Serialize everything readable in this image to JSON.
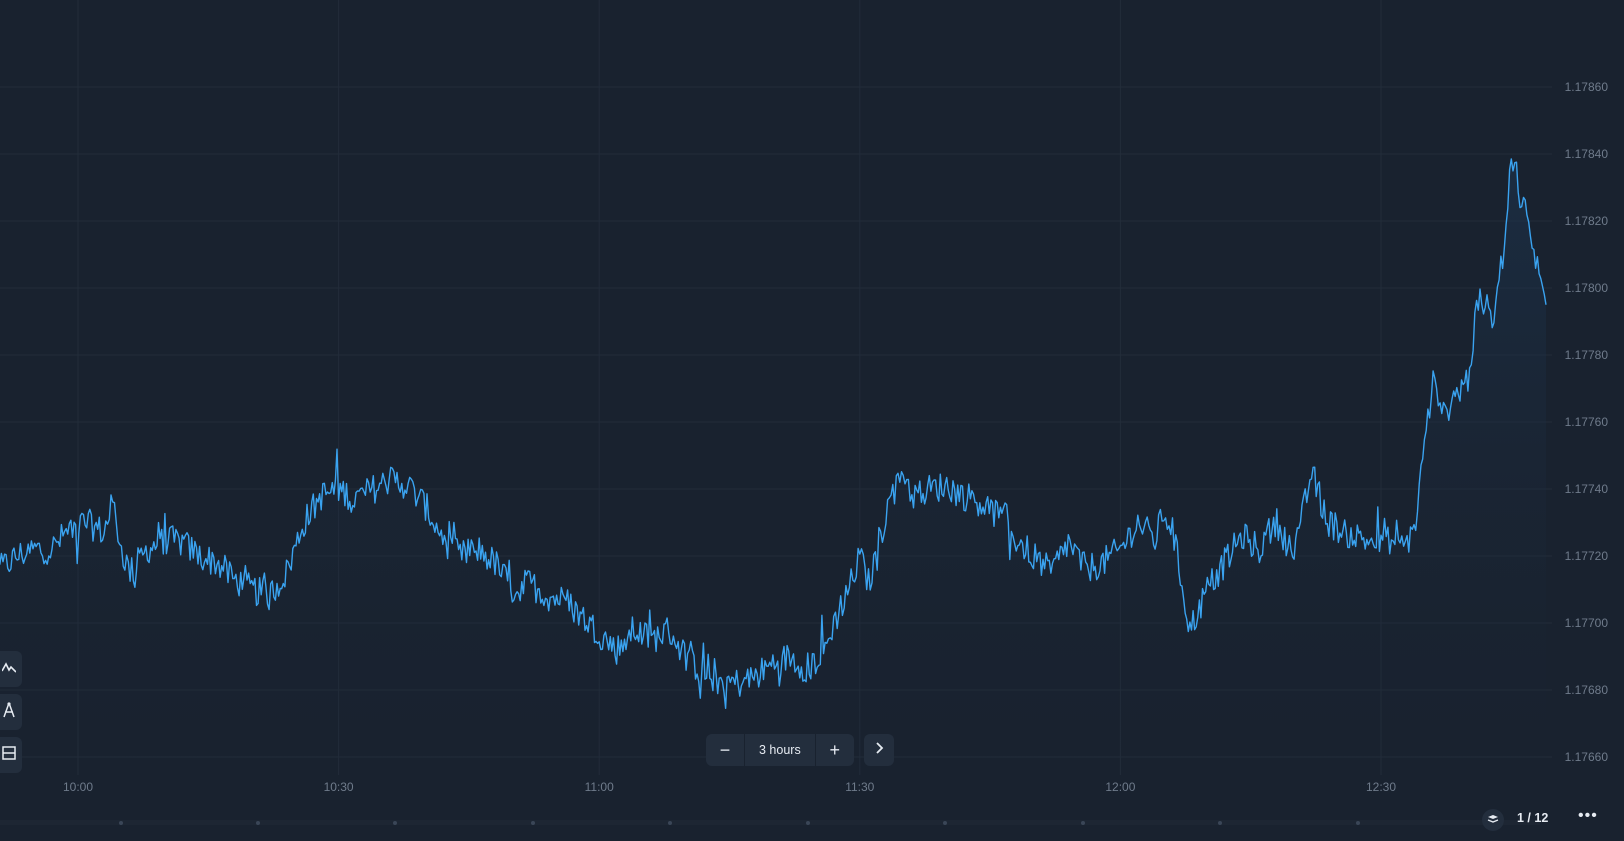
{
  "chart_data": {
    "type": "area",
    "title": "",
    "xlabel": "",
    "ylabel": "",
    "x_ticks": [
      "10:00",
      "10:30",
      "11:00",
      "11:30",
      "12:00",
      "12:30"
    ],
    "y_ticks": [
      "1.17860",
      "1.17840",
      "1.17820",
      "1.17800",
      "1.17780",
      "1.17760",
      "1.17740",
      "1.17720",
      "1.17700",
      "1.17680",
      "1.17660"
    ],
    "ylim": [
      1.1765,
      1.1788
    ],
    "xlim": [
      "09:51",
      "12:49"
    ],
    "grid": true,
    "line_color": "#3aa3f0",
    "series": [
      {
        "x": [
          "09:51",
          "09:53",
          "09:55",
          "09:57",
          "09:59",
          "10:01",
          "10:03",
          "10:04",
          "10:05",
          "10:06",
          "10:08",
          "10:10",
          "10:12",
          "10:14",
          "10:16",
          "10:18",
          "10:20",
          "10:22",
          "10:24",
          "10:26",
          "10:28",
          "10:30",
          "10:32",
          "10:34",
          "10:36",
          "10:38",
          "10:40",
          "10:42",
          "10:44",
          "10:46",
          "10:48",
          "10:50",
          "10:52",
          "10:54",
          "10:56",
          "10:58",
          "11:00",
          "11:02",
          "11:04",
          "11:06",
          "11:08",
          "11:10",
          "11:12",
          "11:14",
          "11:16",
          "11:18",
          "11:20",
          "11:22",
          "11:24",
          "11:26",
          "11:27",
          "11:28",
          "11:29",
          "11:30",
          "11:31",
          "11:32",
          "11:33",
          "11:34",
          "11:35",
          "11:36",
          "11:38",
          "11:40",
          "11:42",
          "11:44",
          "11:46",
          "11:48",
          "11:50",
          "11:52",
          "11:54",
          "11:56",
          "11:58",
          "12:00",
          "12:02",
          "12:04",
          "12:05",
          "12:06",
          "12:08",
          "12:10",
          "12:12",
          "12:14",
          "12:16",
          "12:18",
          "12:20",
          "12:22",
          "12:24",
          "12:26",
          "12:28",
          "12:30",
          "12:31",
          "12:32",
          "12:33",
          "12:34",
          "12:35",
          "12:36",
          "12:37",
          "12:38",
          "12:40",
          "12:41",
          "12:42",
          "12:43",
          "12:44",
          "12:45",
          "12:46",
          "12:47",
          "12:48",
          "12:49"
        ],
        "y": [
          1.17716,
          1.1772,
          1.17722,
          1.17722,
          1.17728,
          1.1773,
          1.17727,
          1.17736,
          1.17722,
          1.17715,
          1.17722,
          1.17725,
          1.17724,
          1.1772,
          1.17718,
          1.17713,
          1.1771,
          1.17708,
          1.17715,
          1.1773,
          1.17738,
          1.1774,
          1.17737,
          1.1774,
          1.17743,
          1.17741,
          1.17735,
          1.17725,
          1.1772,
          1.17722,
          1.17718,
          1.1771,
          1.17712,
          1.17708,
          1.17707,
          1.17702,
          1.17697,
          1.17692,
          1.17698,
          1.17695,
          1.17698,
          1.1769,
          1.17685,
          1.17683,
          1.17682,
          1.17684,
          1.17688,
          1.1769,
          1.17686,
          1.17692,
          1.177,
          1.17706,
          1.17712,
          1.1772,
          1.17712,
          1.1772,
          1.17733,
          1.1774,
          1.17746,
          1.17738,
          1.1774,
          1.17741,
          1.17738,
          1.17736,
          1.17732,
          1.17725,
          1.1772,
          1.17715,
          1.17724,
          1.17716,
          1.17718,
          1.17722,
          1.1773,
          1.17725,
          1.17733,
          1.17728,
          1.17698,
          1.1771,
          1.17718,
          1.17726,
          1.17722,
          1.1773,
          1.1772,
          1.17745,
          1.1773,
          1.17727,
          1.17725,
          1.17724,
          1.17725,
          1.17722,
          1.17724,
          1.1773,
          1.17754,
          1.17772,
          1.1776,
          1.17766,
          1.17773,
          1.17792,
          1.17795,
          1.1779,
          1.1781,
          1.1784,
          1.1783,
          1.17818,
          1.17806,
          1.17795
        ]
      }
    ]
  },
  "controls": {
    "zoom_out_symbol": "−",
    "zoom_in_symbol": "+",
    "zoom_label": "3 hours",
    "next_symbol": "›",
    "tools": [
      "indicator-icon",
      "drawing-tool-icon",
      "layout-icon"
    ]
  },
  "footer": {
    "page_counter": "1 / 12",
    "more_symbol": "•••"
  }
}
